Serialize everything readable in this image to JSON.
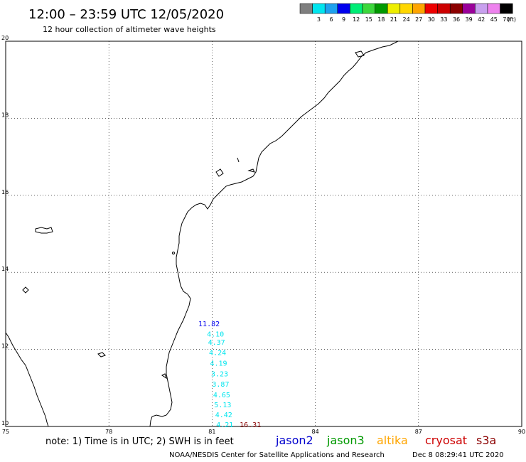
{
  "header": {
    "title": "12:00 – 23:59 UTC 12/05/2020",
    "subtitle": "12 hour collection of altimeter wave heights"
  },
  "legend": {
    "unit": "(ft)",
    "bins": [
      {
        "label": "",
        "color": "#7f7f7f"
      },
      {
        "label": "3",
        "color": "#00e5ee"
      },
      {
        "label": "6",
        "color": "#1ea1ee"
      },
      {
        "label": "9",
        "color": "#0000ee"
      },
      {
        "label": "12",
        "color": "#00ee76"
      },
      {
        "label": "15",
        "color": "#3cd83c"
      },
      {
        "label": "18",
        "color": "#009900"
      },
      {
        "label": "21",
        "color": "#eeee00"
      },
      {
        "label": "24",
        "color": "#ffd700"
      },
      {
        "label": "27",
        "color": "#ffa500"
      },
      {
        "label": "30",
        "color": "#ee0000"
      },
      {
        "label": "33",
        "color": "#cd0000"
      },
      {
        "label": "36",
        "color": "#8b0000"
      },
      {
        "label": "39",
        "color": "#9a009a"
      },
      {
        "label": "42",
        "color": "#c8a0ee"
      },
      {
        "label": "45",
        "color": "#ee82ee"
      },
      {
        "label": "70",
        "color": "#000000"
      }
    ]
  },
  "chart_data": {
    "type": "scatter",
    "xlim": [
      75,
      90
    ],
    "ylim": [
      10,
      20
    ],
    "xticks": [
      "75",
      "78",
      "81",
      "84",
      "87",
      "90"
    ],
    "yticks": [
      "10",
      "12",
      "14",
      "16",
      "18",
      "20"
    ],
    "grid": true,
    "points": [
      {
        "x": 80.6,
        "y": 12.6,
        "label": "11.82",
        "color": "#0000ee"
      },
      {
        "x": 80.85,
        "y": 12.33,
        "label": "4.10",
        "color": "#00e5ee"
      },
      {
        "x": 80.88,
        "y": 12.12,
        "label": "4.37",
        "color": "#00e5ee"
      },
      {
        "x": 80.91,
        "y": 11.85,
        "label": "4.24",
        "color": "#00e5ee"
      },
      {
        "x": 80.94,
        "y": 11.58,
        "label": "4.19",
        "color": "#00e5ee"
      },
      {
        "x": 80.97,
        "y": 11.3,
        "label": "3.23",
        "color": "#00e5ee"
      },
      {
        "x": 81.0,
        "y": 11.03,
        "label": "3.87",
        "color": "#00e5ee"
      },
      {
        "x": 81.03,
        "y": 10.76,
        "label": "4.65",
        "color": "#00e5ee"
      },
      {
        "x": 81.06,
        "y": 10.5,
        "label": "5.13",
        "color": "#00e5ee"
      },
      {
        "x": 81.09,
        "y": 10.24,
        "label": "4.42",
        "color": "#00e5ee"
      },
      {
        "x": 81.12,
        "y": 9.98,
        "label": "4.21",
        "color": "#00e5ee"
      },
      {
        "x": 81.8,
        "y": 9.98,
        "label": "16.31",
        "color": "#8b0000"
      }
    ]
  },
  "footer": {
    "note": "note:  1) Time is in UTC;  2) SWH is in feet",
    "missions": [
      {
        "name": "jason2",
        "color": "#0000cd"
      },
      {
        "name": "jason3",
        "color": "#009900"
      },
      {
        "name": "altika",
        "color": "#ffa500"
      },
      {
        "name": "cryosat",
        "color": "#cd0000"
      },
      {
        "name": "s3a",
        "color": "#8b0000"
      }
    ],
    "credit": "NOAA/NESDIS Center for Satellite Applications and Research",
    "timestamp": "Dec  8 08:29:41 UTC 2020"
  }
}
